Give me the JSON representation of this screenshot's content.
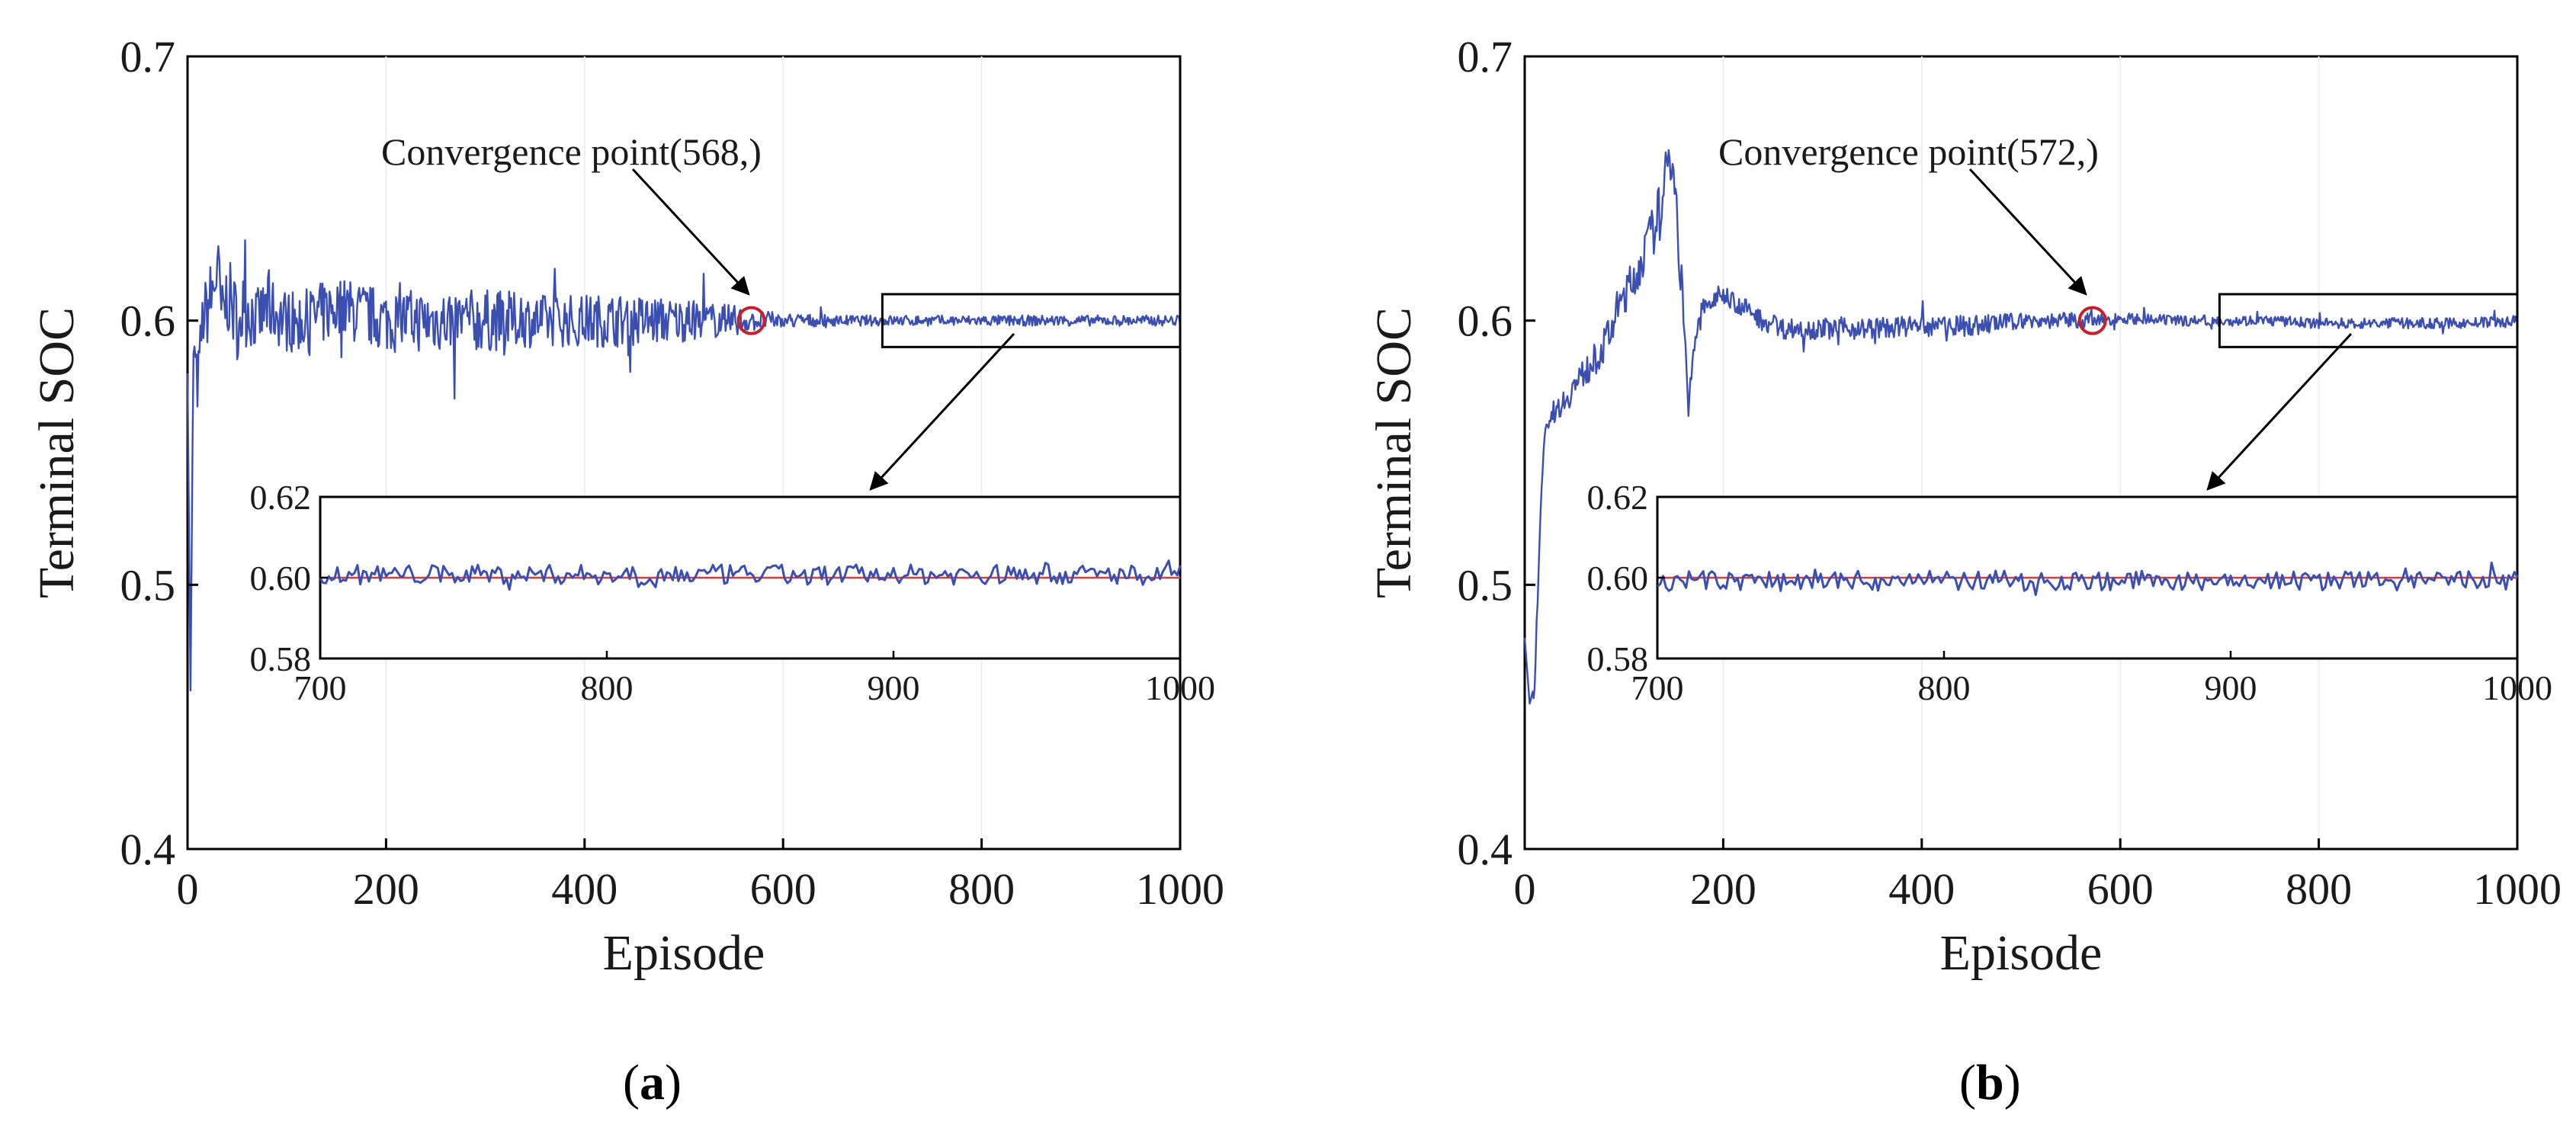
{
  "chart_data": [
    {
      "type": "line",
      "panel_caption": "(a)",
      "caption_letter": "a",
      "xlabel": "Episode",
      "ylabel": "Terminal SOC",
      "xlim": [
        0,
        1000
      ],
      "ylim": [
        0.4,
        0.7
      ],
      "xticks": [
        "0",
        "200",
        "400",
        "600",
        "800",
        "1000"
      ],
      "yticks": [
        "0.4",
        "0.5",
        "0.6",
        "0.7"
      ],
      "series": [
        {
          "name": "Terminal SOC",
          "color": "#3b4fb0",
          "x": [
            0,
            3,
            6,
            10,
            15,
            20,
            25,
            30,
            35,
            40,
            50,
            60,
            70,
            80,
            100,
            120,
            150,
            200,
            250,
            300,
            350,
            400,
            450,
            500,
            550,
            568,
            600,
            650,
            700,
            750,
            800,
            850,
            900,
            950,
            1000
          ],
          "y": [
            0.58,
            0.46,
            0.59,
            0.575,
            0.6,
            0.605,
            0.61,
            0.62,
            0.6,
            0.61,
            0.6,
            0.605,
            0.6,
            0.605,
            0.6,
            0.6,
            0.605,
            0.6,
            0.6,
            0.6,
            0.6,
            0.6,
            0.6,
            0.6,
            0.6,
            0.6,
            0.6,
            0.6,
            0.6,
            0.6,
            0.6,
            0.6,
            0.6,
            0.6,
            0.6
          ],
          "noise_amplitude": [
            0,
            0,
            0.01,
            0.01,
            0.01,
            0.015,
            0.015,
            0.015,
            0.015,
            0.015,
            0.015,
            0.015,
            0.012,
            0.012,
            0.012,
            0.012,
            0.012,
            0.012,
            0.012,
            0.012,
            0.01,
            0.01,
            0.01,
            0.008,
            0.006,
            0.004,
            0.003,
            0.002,
            0.002,
            0.002,
            0.002,
            0.002,
            0.002,
            0.002,
            0.002
          ]
        }
      ],
      "reference_line": {
        "y": 0.6,
        "color": "#e03b3b"
      },
      "convergence_point": {
        "x": 568,
        "y": 0.6,
        "label": "Convergence point(568,)",
        "color": "#c8202a"
      },
      "zoom_box": {
        "xlim": [
          700,
          1000
        ],
        "ylim": [
          0.59,
          0.61
        ]
      },
      "inset": {
        "xlim": [
          700,
          1000
        ],
        "ylim": [
          0.58,
          0.62
        ],
        "xticks": [
          "700",
          "800",
          "900",
          "1000"
        ],
        "yticks": [
          "0.58",
          "0.60",
          "0.62"
        ],
        "amplitude": 0.0025,
        "bias": 0.0015
      }
    },
    {
      "type": "line",
      "panel_caption": "(b)",
      "caption_letter": "b",
      "xlabel": "Episode",
      "ylabel": "Terminal SOC",
      "xlim": [
        0,
        1000
      ],
      "ylim": [
        0.4,
        0.7
      ],
      "xticks": [
        "0",
        "200",
        "400",
        "600",
        "800",
        "1000"
      ],
      "yticks": [
        "0.4",
        "0.5",
        "0.6",
        "0.7"
      ],
      "series": [
        {
          "name": "Terminal SOC",
          "color": "#3b4fb0",
          "x": [
            0,
            5,
            10,
            15,
            20,
            25,
            30,
            40,
            50,
            60,
            70,
            80,
            90,
            100,
            110,
            120,
            130,
            140,
            145,
            150,
            155,
            160,
            165,
            170,
            180,
            200,
            220,
            240,
            260,
            300,
            350,
            400,
            450,
            500,
            550,
            572,
            600,
            650,
            700,
            750,
            800,
            850,
            900,
            950,
            1000
          ],
          "y": [
            0.48,
            0.455,
            0.46,
            0.52,
            0.555,
            0.56,
            0.565,
            0.57,
            0.575,
            0.58,
            0.585,
            0.59,
            0.6,
            0.61,
            0.615,
            0.625,
            0.635,
            0.645,
            0.665,
            0.66,
            0.63,
            0.6,
            0.565,
            0.59,
            0.605,
            0.61,
            0.605,
            0.6,
            0.597,
            0.597,
            0.597,
            0.598,
            0.598,
            0.6,
            0.6,
            0.6,
            0.601,
            0.6,
            0.6,
            0.6,
            0.599,
            0.599,
            0.599,
            0.599,
            0.6
          ],
          "noise_amplitude": [
            0,
            0,
            0.003,
            0.004,
            0.004,
            0.004,
            0.004,
            0.005,
            0.006,
            0.006,
            0.006,
            0.007,
            0.008,
            0.008,
            0.008,
            0.008,
            0.01,
            0.012,
            0.01,
            0.01,
            0.01,
            0.008,
            0.004,
            0.006,
            0.005,
            0.004,
            0.004,
            0.004,
            0.004,
            0.004,
            0.004,
            0.004,
            0.004,
            0.003,
            0.003,
            0.003,
            0.002,
            0.002,
            0.002,
            0.002,
            0.002,
            0.002,
            0.002,
            0.002,
            0.002
          ]
        }
      ],
      "reference_line": {
        "y": 0.6,
        "color": "#e03b3b"
      },
      "convergence_point": {
        "x": 572,
        "y": 0.6,
        "label": "Convergence point(572,)",
        "color": "#c8202a"
      },
      "zoom_box": {
        "xlim": [
          700,
          1000
        ],
        "ylim": [
          0.59,
          0.61
        ]
      },
      "inset": {
        "xlim": [
          700,
          1000
        ],
        "ylim": [
          0.58,
          0.62
        ],
        "xticks": [
          "700",
          "800",
          "900",
          "1000"
        ],
        "yticks": [
          "0.58",
          "0.60",
          "0.62"
        ],
        "amplitude": 0.0025,
        "bias": -0.0015
      }
    }
  ]
}
